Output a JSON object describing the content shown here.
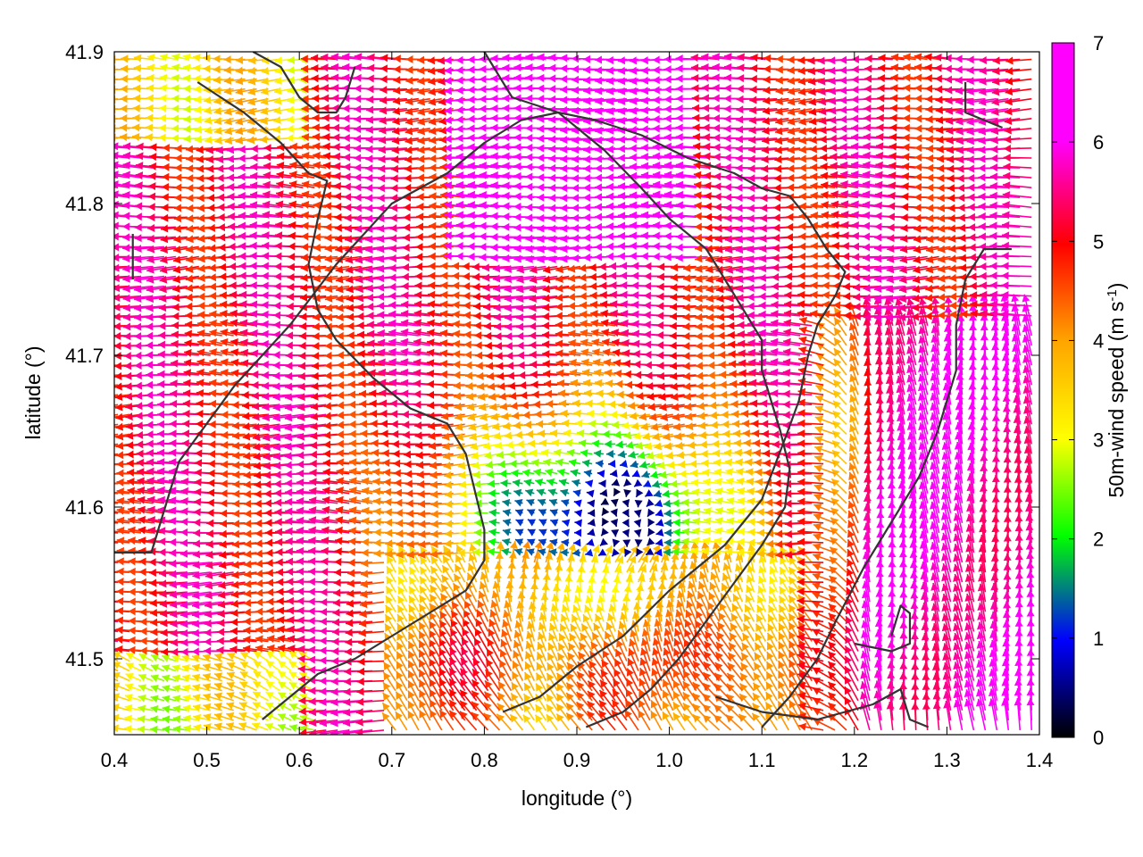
{
  "chart_data": {
    "type": "vector-field",
    "xlabel": "longitude (°)",
    "ylabel": "latitude (°)",
    "xlim": [
      0.4,
      1.4
    ],
    "ylim": [
      41.45,
      41.9
    ],
    "x_ticks": [
      0.4,
      0.5,
      0.6,
      0.7,
      0.8,
      0.9,
      1.0,
      1.1,
      1.2,
      1.3,
      1.4
    ],
    "x_tick_labels": [
      "0.4",
      "0.5",
      "0.6",
      "0.7",
      "0.8",
      "0.9",
      "1.0",
      "1.1",
      "1.2",
      "1.3",
      "1.4"
    ],
    "y_ticks": [
      41.5,
      41.6,
      41.7,
      41.8,
      41.9
    ],
    "y_tick_labels": [
      "41.5",
      "41.6",
      "41.7",
      "41.8",
      "41.9"
    ],
    "colorbar": {
      "label_main": "50m-wind speed (m s",
      "label_sup": "-1",
      "label_close": ")",
      "range": [
        0,
        7
      ],
      "ticks": [
        0,
        1,
        2,
        3,
        4,
        5,
        6,
        7
      ],
      "tick_labels": [
        "0",
        "1",
        "2",
        "3",
        "4",
        "5",
        "6",
        "7"
      ],
      "colors": [
        "#000000",
        "#0000ff",
        "#00ff00",
        "#ffff00",
        "#ffa500",
        "#ff0000",
        "#ff00ff"
      ]
    },
    "grid": false,
    "legend": "colorbar-right",
    "boundaries": [
      [
        [
          0.42,
          41.78
        ],
        [
          0.42,
          41.75
        ]
      ],
      [
        [
          0.4,
          41.57
        ],
        [
          0.44,
          41.57
        ],
        [
          0.47,
          41.63
        ],
        [
          0.53,
          41.68
        ],
        [
          0.59,
          41.72
        ],
        [
          0.64,
          41.76
        ],
        [
          0.7,
          41.8
        ],
        [
          0.76,
          41.82
        ],
        [
          0.8,
          41.84
        ],
        [
          0.84,
          41.855
        ],
        [
          0.88,
          41.86
        ],
        [
          0.92,
          41.855
        ],
        [
          0.97,
          41.845
        ],
        [
          1.02,
          41.83
        ],
        [
          1.07,
          41.82
        ],
        [
          1.1,
          41.81
        ],
        [
          1.13,
          41.805
        ],
        [
          1.15,
          41.79
        ],
        [
          1.17,
          41.77
        ],
        [
          1.19,
          41.755
        ],
        [
          1.18,
          41.74
        ],
        [
          1.16,
          41.72
        ],
        [
          1.15,
          41.7
        ],
        [
          1.14,
          41.67
        ],
        [
          1.125,
          41.645
        ],
        [
          1.1,
          41.605
        ],
        [
          1.06,
          41.575
        ],
        [
          1.0,
          41.545
        ],
        [
          0.95,
          41.515
        ],
        [
          0.9,
          41.495
        ],
        [
          0.86,
          41.475
        ],
        [
          0.82,
          41.465
        ]
      ],
      [
        [
          0.49,
          41.88
        ],
        [
          0.54,
          41.86
        ],
        [
          0.58,
          41.84
        ],
        [
          0.61,
          41.82
        ],
        [
          0.63,
          41.815
        ],
        [
          0.62,
          41.79
        ],
        [
          0.61,
          41.76
        ],
        [
          0.62,
          41.73
        ],
        [
          0.64,
          41.71
        ],
        [
          0.68,
          41.685
        ],
        [
          0.72,
          41.665
        ],
        [
          0.76,
          41.655
        ],
        [
          0.78,
          41.635
        ],
        [
          0.79,
          41.61
        ],
        [
          0.8,
          41.585
        ],
        [
          0.8,
          41.565
        ],
        [
          0.78,
          41.545
        ],
        [
          0.74,
          41.53
        ],
        [
          0.7,
          41.515
        ],
        [
          0.66,
          41.5
        ],
        [
          0.62,
          41.49
        ],
        [
          0.59,
          41.475
        ],
        [
          0.56,
          41.46
        ]
      ],
      [
        [
          0.8,
          41.9
        ],
        [
          0.83,
          41.87
        ],
        [
          0.88,
          41.86
        ],
        [
          0.93,
          41.835
        ],
        [
          0.97,
          41.81
        ],
        [
          1.0,
          41.79
        ],
        [
          1.04,
          41.77
        ],
        [
          1.06,
          41.75
        ],
        [
          1.08,
          41.73
        ],
        [
          1.1,
          41.71
        ],
        [
          1.1,
          41.69
        ],
        [
          1.11,
          41.67
        ],
        [
          1.12,
          41.65
        ],
        [
          1.13,
          41.625
        ],
        [
          1.125,
          41.6
        ],
        [
          1.1,
          41.575
        ],
        [
          1.07,
          41.55
        ],
        [
          1.04,
          41.525
        ],
        [
          1.01,
          41.5
        ],
        [
          0.98,
          41.48
        ],
        [
          0.95,
          41.465
        ],
        [
          0.91,
          41.455
        ]
      ],
      [
        [
          1.32,
          41.88
        ],
        [
          1.32,
          41.86
        ],
        [
          1.36,
          41.85
        ]
      ],
      [
        [
          1.37,
          41.77
        ],
        [
          1.34,
          41.77
        ],
        [
          1.32,
          41.75
        ],
        [
          1.31,
          41.72
        ],
        [
          1.31,
          41.69
        ],
        [
          1.29,
          41.65
        ],
        [
          1.27,
          41.62
        ],
        [
          1.24,
          41.59
        ],
        [
          1.21,
          41.56
        ],
        [
          1.18,
          41.525
        ],
        [
          1.16,
          41.5
        ],
        [
          1.13,
          41.475
        ],
        [
          1.1,
          41.455
        ]
      ],
      [
        [
          1.2,
          41.51
        ],
        [
          1.24,
          41.505
        ],
        [
          1.26,
          41.51
        ],
        [
          1.26,
          41.53
        ],
        [
          1.25,
          41.535
        ],
        [
          1.24,
          41.515
        ]
      ],
      [
        [
          1.05,
          41.475
        ],
        [
          1.1,
          41.465
        ],
        [
          1.16,
          41.46
        ],
        [
          1.22,
          41.47
        ],
        [
          1.25,
          41.48
        ],
        [
          1.26,
          41.46
        ],
        [
          1.28,
          41.455
        ]
      ],
      [
        [
          0.55,
          41.9
        ],
        [
          0.58,
          41.89
        ],
        [
          0.6,
          41.87
        ],
        [
          0.62,
          41.86
        ],
        [
          0.64,
          41.86
        ],
        [
          0.65,
          41.87
        ],
        [
          0.66,
          41.89
        ]
      ]
    ]
  }
}
